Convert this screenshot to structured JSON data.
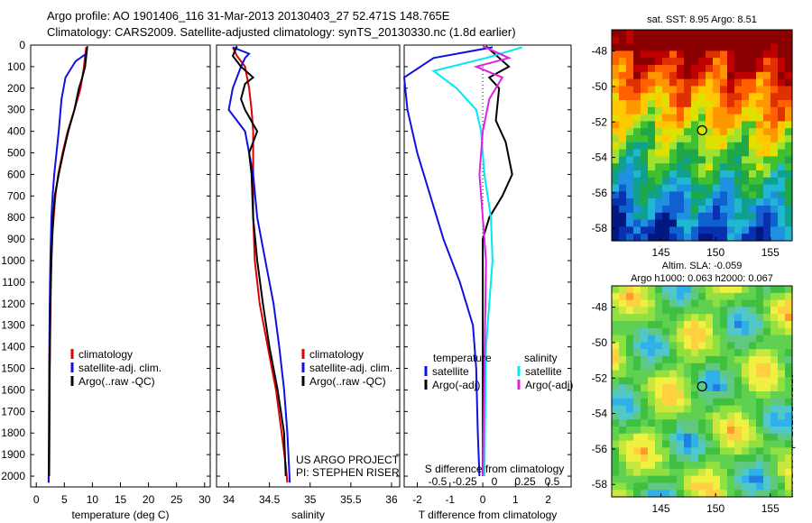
{
  "header": {
    "title_line1": "Argo profile: AO 1901406_116 31-Mar-2013 20130403_27 52.471S 148.765E",
    "title_line2": "Climatology: CARS2009. Satellite-adjusted climatology: synTS_20130330.nc (1.8d earlier)"
  },
  "stamp": "IMOS 06-Apr-2013 17:01:15",
  "colors": {
    "climatology": "#e00000",
    "satellite": "#1010e0",
    "argo": "#000000",
    "salinity_sat": "#00e8f0",
    "salinity_argo": "#e020e0"
  },
  "chart_data": [
    {
      "type": "line",
      "xlabel": "temperature (deg C)",
      "ylabel": "",
      "xlim": [
        -1,
        31
      ],
      "ylim": [
        2050,
        0
      ],
      "xticks": [
        0,
        5,
        10,
        15,
        20,
        25,
        30
      ],
      "yticks": [
        0,
        100,
        200,
        300,
        400,
        500,
        600,
        700,
        800,
        900,
        1000,
        1100,
        1200,
        1300,
        1400,
        1500,
        1600,
        1700,
        1800,
        1900,
        2000
      ],
      "legend": [
        "climatology",
        "satellite-adj. clim.",
        "Argo(..raw -QC)"
      ],
      "series": [
        {
          "name": "climatology",
          "color": "#e00000",
          "x": [
            8.9,
            8.7,
            8.5,
            7.9,
            6.8,
            5.6,
            4.7,
            3.9,
            3.4,
            3.1,
            2.8,
            2.65,
            2.55,
            2.4,
            2.3,
            2.2
          ],
          "y": [
            10,
            50,
            100,
            200,
            300,
            400,
            500,
            600,
            700,
            800,
            900,
            1000,
            1200,
            1500,
            1800,
            2030
          ]
        },
        {
          "name": "satellite-adj. clim.",
          "color": "#1010e0",
          "x": [
            9.0,
            8.9,
            7.0,
            5.2,
            4.5,
            4.0,
            3.6,
            3.2,
            2.9,
            2.7,
            2.6,
            2.5,
            2.4,
            2.3,
            2.2
          ],
          "y": [
            10,
            40,
            75,
            150,
            250,
            400,
            500,
            600,
            700,
            800,
            900,
            1000,
            1200,
            1500,
            2030
          ]
        },
        {
          "name": "Argo(..raw -QC)",
          "color": "#000000",
          "x": [
            9.1,
            8.9,
            8.7,
            8.2,
            7.6,
            6.8,
            5.7,
            4.8,
            4.0,
            3.3,
            3.0,
            2.85,
            2.7,
            2.6,
            2.5,
            2.4,
            2.35,
            2.3
          ],
          "y": [
            5,
            50,
            100,
            150,
            200,
            300,
            400,
            500,
            600,
            700,
            800,
            900,
            1000,
            1100,
            1200,
            1500,
            1800,
            2000
          ]
        }
      ]
    },
    {
      "type": "line",
      "xlabel": "salinity",
      "ylabel": "",
      "xlim": [
        33.85,
        36.1
      ],
      "ylim": [
        2050,
        0
      ],
      "xticks": [
        34,
        34.5,
        35,
        35.5,
        36
      ],
      "legend": [
        "climatology",
        "satellite-adj. clim.",
        "Argo(..raw -QC)"
      ],
      "annotations": [
        "US ARGO PROJECT",
        "PI: STEPHEN RISER"
      ],
      "series": [
        {
          "name": "climatology",
          "color": "#e00000",
          "x": [
            34.05,
            34.1,
            34.2,
            34.25,
            34.28,
            34.3,
            34.3,
            34.3,
            34.32,
            34.38,
            34.48,
            34.58,
            34.65,
            34.7,
            34.72
          ],
          "y": [
            10,
            50,
            100,
            200,
            300,
            400,
            600,
            800,
            1000,
            1200,
            1400,
            1600,
            1800,
            1950,
            2030
          ]
        },
        {
          "name": "satellite-adj. clim.",
          "color": "#1010e0",
          "x": [
            34.05,
            34.25,
            34.2,
            34.15,
            34.05,
            34.0,
            34.2,
            34.3,
            34.35,
            34.45,
            34.55,
            34.62,
            34.68,
            34.72,
            34.75
          ],
          "y": [
            10,
            40,
            60,
            100,
            200,
            300,
            400,
            600,
            800,
            1000,
            1200,
            1400,
            1600,
            1800,
            2030
          ]
        },
        {
          "name": "Argo(..raw -QC)",
          "color": "#000000",
          "x": [
            34.1,
            34.05,
            34.15,
            34.3,
            34.2,
            34.15,
            34.2,
            34.35,
            34.25,
            34.28,
            34.3,
            34.35,
            34.42,
            34.5,
            34.6,
            34.68,
            34.7
          ],
          "y": [
            5,
            50,
            100,
            150,
            180,
            250,
            300,
            400,
            500,
            600,
            800,
            1000,
            1200,
            1400,
            1600,
            1800,
            2000
          ]
        }
      ]
    },
    {
      "type": "line",
      "xlabel": "T difference from climatology",
      "top_label": "S difference from climatology",
      "ylabel": "",
      "xlim": [
        -2.4,
        2.7
      ],
      "ylim": [
        2050,
        0
      ],
      "xticks": [
        -2,
        -1,
        0,
        1,
        2
      ],
      "top_ticks": [
        "-0.5",
        "-0.25",
        "0",
        "0.25",
        "0.5"
      ],
      "legend_titles": [
        "temperature",
        "salinity"
      ],
      "legend": [
        "satellite",
        "Argo(-adj)",
        "satellite",
        "Argo(-adj)"
      ],
      "series": [
        {
          "name": "satellite",
          "color": "#1010e0",
          "x": [
            0.3,
            -1.5,
            -2.4,
            -2.3,
            -2.0,
            -1.6,
            -1.2,
            -0.7,
            -0.3,
            -0.2,
            -0.15,
            -0.1
          ],
          "y": [
            10,
            60,
            150,
            300,
            500,
            700,
            900,
            1100,
            1300,
            1500,
            1800,
            2000
          ]
        },
        {
          "name": "Argo(-adj)",
          "color": "#000000",
          "x": [
            0.1,
            0.8,
            0.2,
            0.5,
            0.4,
            0.7,
            0.9,
            0.6,
            0.2,
            0.0,
            0.0,
            0.0
          ],
          "y": [
            5,
            100,
            150,
            200,
            350,
            450,
            600,
            700,
            800,
            900,
            1200,
            2000
          ]
        },
        {
          "name": "satellite",
          "color": "#00e8f0",
          "x": [
            1.2,
            0.1,
            -1.5,
            -0.8,
            -0.2,
            -0.05,
            0.05,
            0.25,
            0.3,
            0.1,
            0.05
          ],
          "y": [
            10,
            60,
            120,
            200,
            300,
            400,
            600,
            800,
            1000,
            1400,
            2000
          ]
        },
        {
          "name": "Argo(-adj)",
          "color": "#e020e0",
          "x": [
            0.0,
            0.8,
            -0.2,
            0.6,
            0.2,
            0.0,
            -0.1,
            0.0,
            0.1,
            0.0
          ],
          "y": [
            5,
            60,
            100,
            150,
            250,
            400,
            600,
            800,
            1000,
            2000
          ]
        }
      ]
    },
    {
      "type": "heatmap",
      "title": "sat. SST: 8.95 Argo: 8.51",
      "xticks": [
        145,
        150,
        155
      ],
      "yticks": [
        -48,
        -50,
        -52,
        -54,
        -56,
        -58
      ],
      "xlim": [
        140.5,
        157
      ],
      "ylim": [
        -58.7,
        -46.8
      ],
      "marker": {
        "lon": 148.765,
        "lat": -52.471
      }
    },
    {
      "type": "heatmap",
      "title_line1": "Altim. SLA: -0.059",
      "title_line2": "Argo h1000: 0.063 h2000: 0.067",
      "xticks": [
        145,
        150,
        155
      ],
      "yticks": [
        -48,
        -50,
        -52,
        -54,
        -56,
        -58
      ],
      "xlim": [
        140.5,
        157
      ],
      "ylim": [
        -58.7,
        -46.8
      ],
      "marker": {
        "lon": 148.765,
        "lat": -52.471
      }
    }
  ]
}
